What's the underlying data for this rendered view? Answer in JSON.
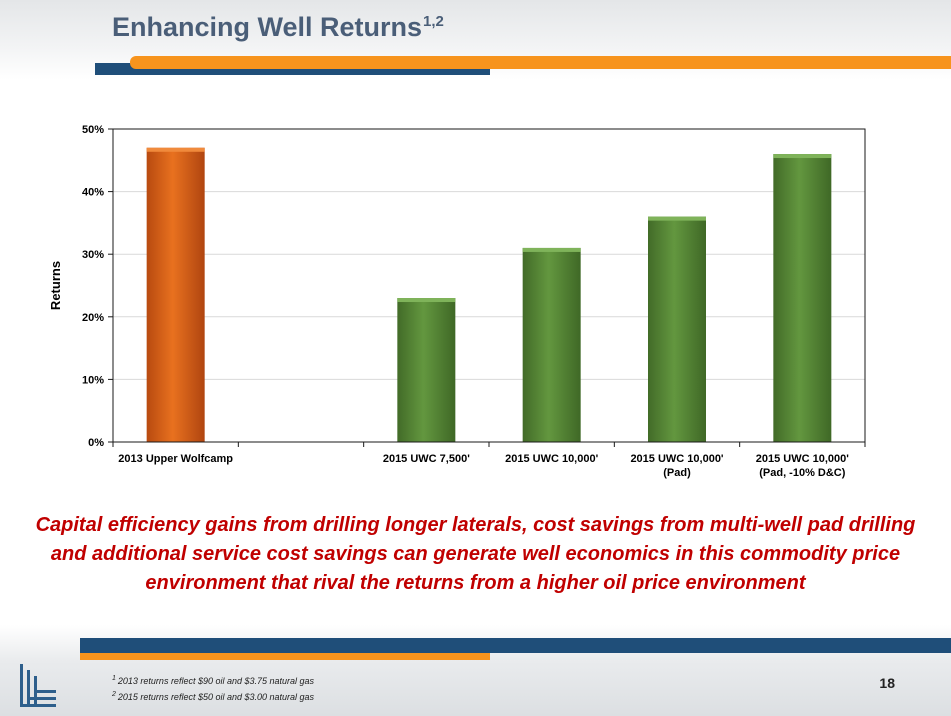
{
  "slide": {
    "title": "Enhancing Well Returns",
    "title_sup": "1,2",
    "statement": "Capital efficiency gains from drilling longer laterals, cost savings from multi-well pad drilling and additional service cost savings can generate well economics in this commodity price environment that rival the returns from a higher oil price environment",
    "footnotes": [
      {
        "mark": "1",
        "text": "2013 returns reflect $90 oil and $3.75 natural gas"
      },
      {
        "mark": "2",
        "text": "2015 returns reflect $50 oil and $3.00 natural gas"
      }
    ],
    "page_number": "18"
  },
  "colors": {
    "navy": "#1f4e79",
    "orange_accent": "#f7941d",
    "bar_orange": "#e0621a",
    "bar_green": "#5a8c3a",
    "statement_red": "#c00000"
  },
  "chart_data": {
    "type": "bar",
    "title": "",
    "xlabel": "",
    "ylabel": "Returns",
    "ylim": [
      0,
      50
    ],
    "yticks": [
      0,
      10,
      20,
      30,
      40,
      50
    ],
    "ytick_labels": [
      "0%",
      "10%",
      "20%",
      "30%",
      "40%",
      "50%"
    ],
    "grid": true,
    "legend": "none",
    "categories": [
      [
        "2013 Upper Wolfcamp"
      ],
      [
        ""
      ],
      [
        "2015 UWC 7,500'"
      ],
      [
        "2015 UWC 10,000'"
      ],
      [
        "2015 UWC 10,000'",
        "(Pad)"
      ],
      [
        "2015 UWC 10,000'",
        "(Pad, -10% D&C)"
      ]
    ],
    "values": [
      47,
      null,
      23,
      31,
      36,
      46
    ],
    "bar_colors": [
      "#e0621a",
      null,
      "#5a8c3a",
      "#5a8c3a",
      "#5a8c3a",
      "#5a8c3a"
    ]
  }
}
